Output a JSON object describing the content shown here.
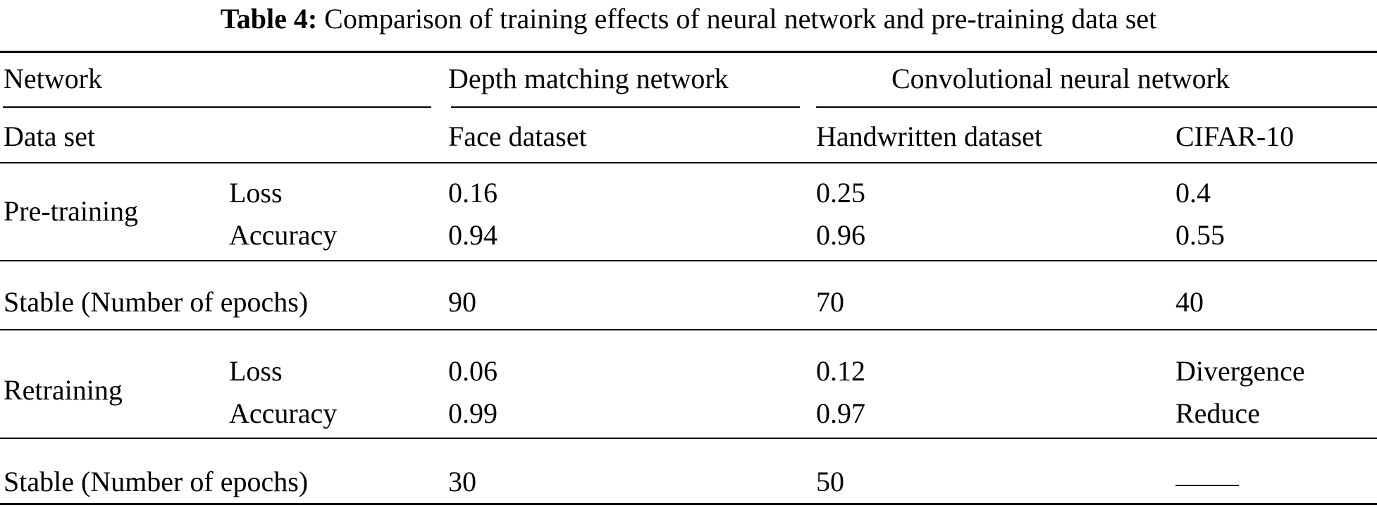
{
  "caption": {
    "label": "Table 4:",
    "text": "Comparison of training effects of neural network and pre-training data set"
  },
  "header": {
    "network_label": "Network",
    "depth_network": "Depth matching network",
    "cnn": "Convolutional neural network",
    "dataset_label": "Data set",
    "face": "Face dataset",
    "handwritten": "Handwritten dataset",
    "cifar": "CIFAR-10"
  },
  "rows": {
    "pretraining": {
      "label": "Pre-training",
      "loss_label": "Loss",
      "accuracy_label": "Accuracy",
      "loss": [
        "0.16",
        "0.25",
        "0.4"
      ],
      "accuracy": [
        "0.94",
        "0.96",
        "0.55"
      ]
    },
    "stable1": {
      "label": "Stable (Number of epochs)",
      "values": [
        "90",
        "70",
        "40"
      ]
    },
    "retraining": {
      "label": "Retraining",
      "loss_label": "Loss",
      "accuracy_label": "Accuracy",
      "loss": [
        "0.06",
        "0.12",
        "Divergence"
      ],
      "accuracy": [
        "0.99",
        "0.97",
        "Reduce"
      ]
    },
    "stable2": {
      "label": "Stable (Number of epochs)",
      "values": [
        "30",
        "50",
        ""
      ]
    }
  }
}
